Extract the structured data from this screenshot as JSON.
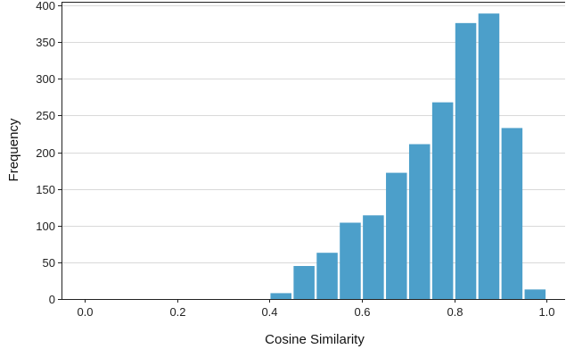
{
  "chart_data": {
    "type": "bar",
    "title": "",
    "xlabel": "Cosine Similarity",
    "ylabel": "Frequency",
    "xlim": [
      -0.05,
      1.04
    ],
    "ylim": [
      0,
      405
    ],
    "grid": "horizontal",
    "bar_color": "#4c9fca",
    "bin_width": 0.05,
    "x_ticks": [
      {
        "value": 0.0,
        "label": "0.0"
      },
      {
        "value": 0.2,
        "label": "0.2"
      },
      {
        "value": 0.4,
        "label": "0.4"
      },
      {
        "value": 0.6,
        "label": "0.6"
      },
      {
        "value": 0.8,
        "label": "0.8"
      },
      {
        "value": 1.0,
        "label": "1.0"
      }
    ],
    "y_ticks": [
      {
        "value": 0,
        "label": "0"
      },
      {
        "value": 50,
        "label": "50"
      },
      {
        "value": 100,
        "label": "100"
      },
      {
        "value": 150,
        "label": "150"
      },
      {
        "value": 200,
        "label": "200"
      },
      {
        "value": 250,
        "label": "250"
      },
      {
        "value": 300,
        "label": "300"
      },
      {
        "value": 350,
        "label": "350"
      },
      {
        "value": 400,
        "label": "400"
      }
    ],
    "bins": [
      {
        "x": 0.425,
        "count": 8
      },
      {
        "x": 0.475,
        "count": 45
      },
      {
        "x": 0.525,
        "count": 63
      },
      {
        "x": 0.575,
        "count": 104
      },
      {
        "x": 0.625,
        "count": 114
      },
      {
        "x": 0.675,
        "count": 172
      },
      {
        "x": 0.725,
        "count": 211
      },
      {
        "x": 0.775,
        "count": 268
      },
      {
        "x": 0.825,
        "count": 376
      },
      {
        "x": 0.875,
        "count": 389
      },
      {
        "x": 0.925,
        "count": 233
      },
      {
        "x": 0.975,
        "count": 13
      }
    ]
  }
}
